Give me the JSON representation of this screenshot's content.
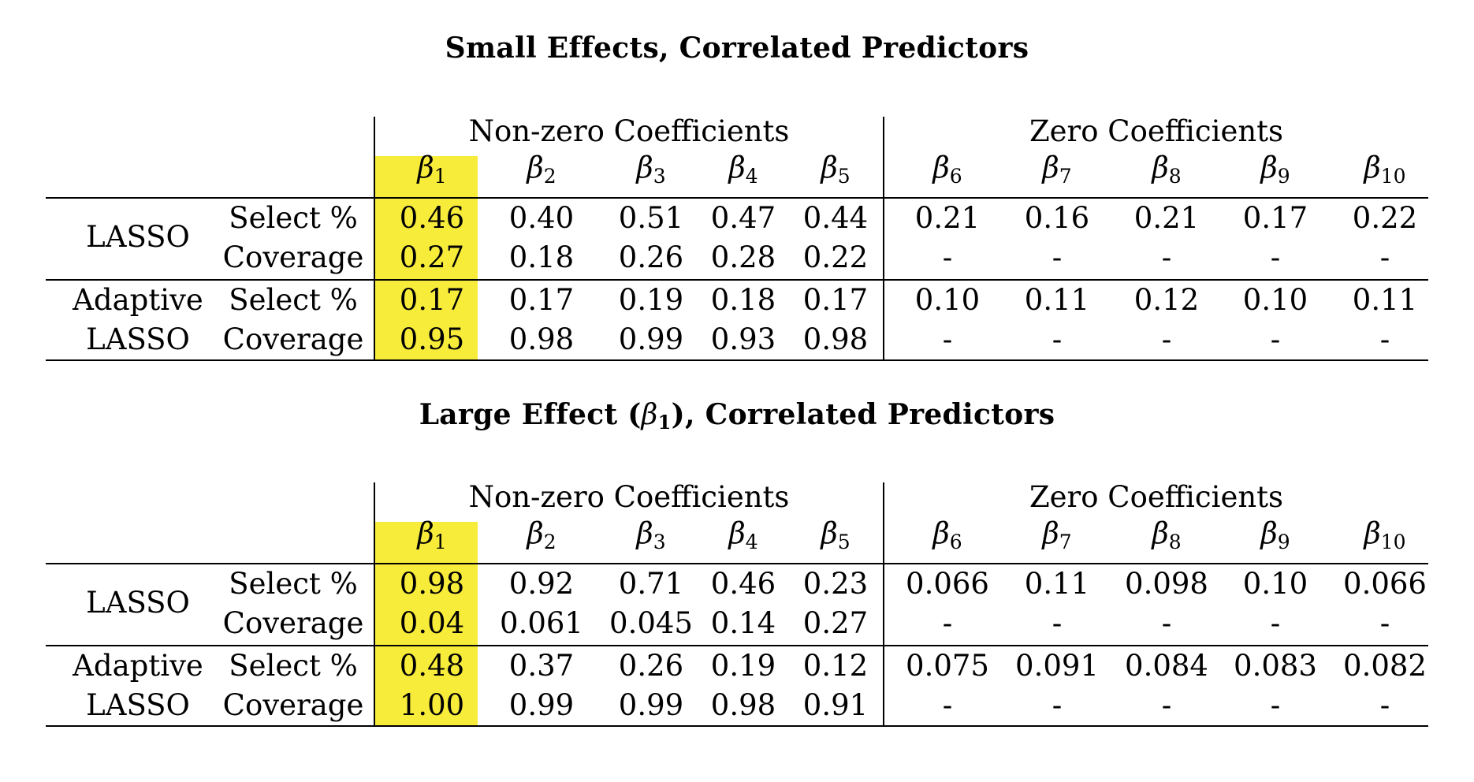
{
  "panels": [
    {
      "title_text": "Small Effects, Correlated Predictors",
      "title_prefix": "",
      "title_math": "",
      "title_math_sub": "",
      "title_suffix": "",
      "group_nonzero": "Non-zero Coefficients",
      "group_zero": "Zero Coefficients",
      "beta_symbol": "β",
      "beta_subs": [
        "1",
        "2",
        "3",
        "4",
        "5",
        "6",
        "7",
        "8",
        "9",
        "10"
      ],
      "rows": [
        {
          "method": "LASSO",
          "method_line": 0,
          "metric": "Select %",
          "values": [
            "0.46",
            "0.40",
            "0.51",
            "0.47",
            "0.44",
            "0.21",
            "0.16",
            "0.21",
            "0.17",
            "0.22"
          ]
        },
        {
          "method": "",
          "method_line": 1,
          "metric": "Coverage",
          "values": [
            "0.27",
            "0.18",
            "0.26",
            "0.28",
            "0.22",
            "-",
            "-",
            "-",
            "-",
            "-"
          ]
        },
        {
          "method": "Adaptive",
          "method_line": 0,
          "metric": "Select %",
          "values": [
            "0.17",
            "0.17",
            "0.19",
            "0.18",
            "0.17",
            "0.10",
            "0.11",
            "0.12",
            "0.10",
            "0.11"
          ]
        },
        {
          "method": "LASSO",
          "method_line": 1,
          "metric": "Coverage",
          "values": [
            "0.95",
            "0.98",
            "0.99",
            "0.93",
            "0.98",
            "-",
            "-",
            "-",
            "-",
            "-"
          ]
        }
      ]
    },
    {
      "title_text": "",
      "title_prefix": "Large Effect (",
      "title_math": "β",
      "title_math_sub": "1",
      "title_suffix": "), Correlated Predictors",
      "group_nonzero": "Non-zero Coefficients",
      "group_zero": "Zero Coefficients",
      "beta_symbol": "β",
      "beta_subs": [
        "1",
        "2",
        "3",
        "4",
        "5",
        "6",
        "7",
        "8",
        "9",
        "10"
      ],
      "rows": [
        {
          "method": "LASSO",
          "method_line": 0,
          "metric": "Select %",
          "values": [
            "0.98",
            "0.92",
            "0.71",
            "0.46",
            "0.23",
            "0.066",
            "0.11",
            "0.098",
            "0.10",
            "0.066"
          ]
        },
        {
          "method": "",
          "method_line": 1,
          "metric": "Coverage",
          "values": [
            "0.04",
            "0.061",
            "0.045",
            "0.14",
            "0.27",
            "-",
            "-",
            "-",
            "-",
            "-"
          ]
        },
        {
          "method": "Adaptive",
          "method_line": 0,
          "metric": "Select %",
          "values": [
            "0.48",
            "0.37",
            "0.26",
            "0.19",
            "0.12",
            "0.075",
            "0.091",
            "0.084",
            "0.083",
            "0.082"
          ]
        },
        {
          "method": "LASSO",
          "method_line": 1,
          "metric": "Coverage",
          "values": [
            "1.00",
            "0.99",
            "0.99",
            "0.98",
            "0.91",
            "-",
            "-",
            "-",
            "-",
            "-"
          ]
        }
      ]
    }
  ],
  "colors": {
    "highlight": "#f8ec3b",
    "rule": "#000000",
    "text": "#000000"
  }
}
